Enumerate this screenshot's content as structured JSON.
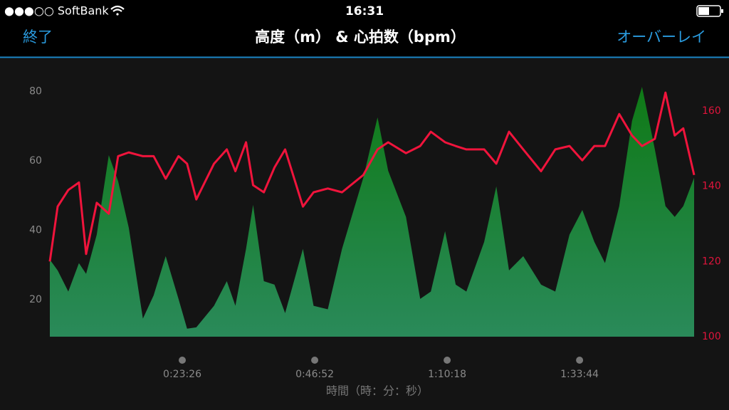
{
  "status_bar": {
    "carrier": "●●●○○ SoftBank",
    "time": "16:31"
  },
  "nav_bar": {
    "left_button": "終了",
    "title": "高度（m） & 心拍数（bpm）",
    "right_button": "オーバーレイ"
  },
  "chart_data": {
    "type": "area-line",
    "x_label": "時間（時：分：秒）",
    "x": [
      0,
      83,
      196,
      309,
      385,
      498,
      626,
      725,
      838,
      988,
      1102,
      1230,
      1366,
      1457,
      1555,
      1743,
      1879,
      1970,
      2083,
      2158,
      2272,
      2385,
      2498,
      2687,
      2800,
      2951,
      3102,
      3328,
      3479,
      3592,
      3781,
      3932,
      4045,
      4196,
      4309,
      4422,
      4611,
      4740,
      4875,
      5026,
      5215,
      5366,
      5517,
      5653,
      5781,
      5894,
      6045,
      6181,
      6287,
      6423,
      6536,
      6634,
      6725,
      6840
    ],
    "xlim": [
      0,
      6840
    ],
    "xticks": [
      {
        "value": 1406,
        "label": "0:23:26"
      },
      {
        "value": 2812,
        "label": "0:46:52"
      },
      {
        "value": 4218,
        "label": "1:10:18"
      },
      {
        "value": 5624,
        "label": "1:33:44"
      }
    ],
    "ylim": [
      9.3,
      85.8
    ],
    "yticks": [
      20,
      40,
      60,
      80
    ],
    "y2lim": [
      100,
      170.6
    ],
    "y2ticks": [
      100,
      120,
      140,
      160
    ],
    "series": [
      {
        "type": "area",
        "color": "#1f8a3a",
        "axis": "y",
        "values": [
          31.5,
          28.4,
          22.3,
          30.5,
          27.4,
          38.7,
          61.6,
          54.1,
          40.7,
          14.5,
          21.2,
          32.5,
          20.2,
          11.6,
          12,
          18.2,
          25.3,
          18.2,
          34.6,
          47.3,
          25.3,
          24.3,
          16.1,
          34.6,
          18.2,
          17.2,
          34.6,
          55.1,
          72.5,
          57.1,
          43.8,
          20.2,
          22.3,
          39.7,
          24.3,
          22.3,
          36.6,
          52.6,
          28.4,
          32.5,
          24.3,
          22.3,
          38.7,
          45.8,
          36.6,
          30.5,
          46.9,
          71.5,
          81.3,
          63.3,
          46.9,
          43.8,
          46.9,
          55.1
        ]
      },
      {
        "type": "line",
        "color": "#f0143c",
        "axis": "y2",
        "values": [
          120,
          134.6,
          139,
          141,
          122,
          135.6,
          132.7,
          148,
          149,
          148,
          148,
          142,
          148,
          146,
          136.5,
          146,
          149.8,
          144,
          151.7,
          140.3,
          138.4,
          145,
          149.8,
          134.6,
          138.4,
          139.4,
          138.4,
          143,
          149.8,
          151.7,
          148.8,
          150.7,
          154.5,
          151.7,
          150.7,
          149.8,
          149.8,
          146,
          154.5,
          149.8,
          144,
          149.8,
          150.7,
          146.9,
          150.7,
          150.7,
          159.2,
          153.5,
          150.7,
          152.6,
          164.9,
          153.5,
          155.4,
          143
        ]
      }
    ]
  }
}
